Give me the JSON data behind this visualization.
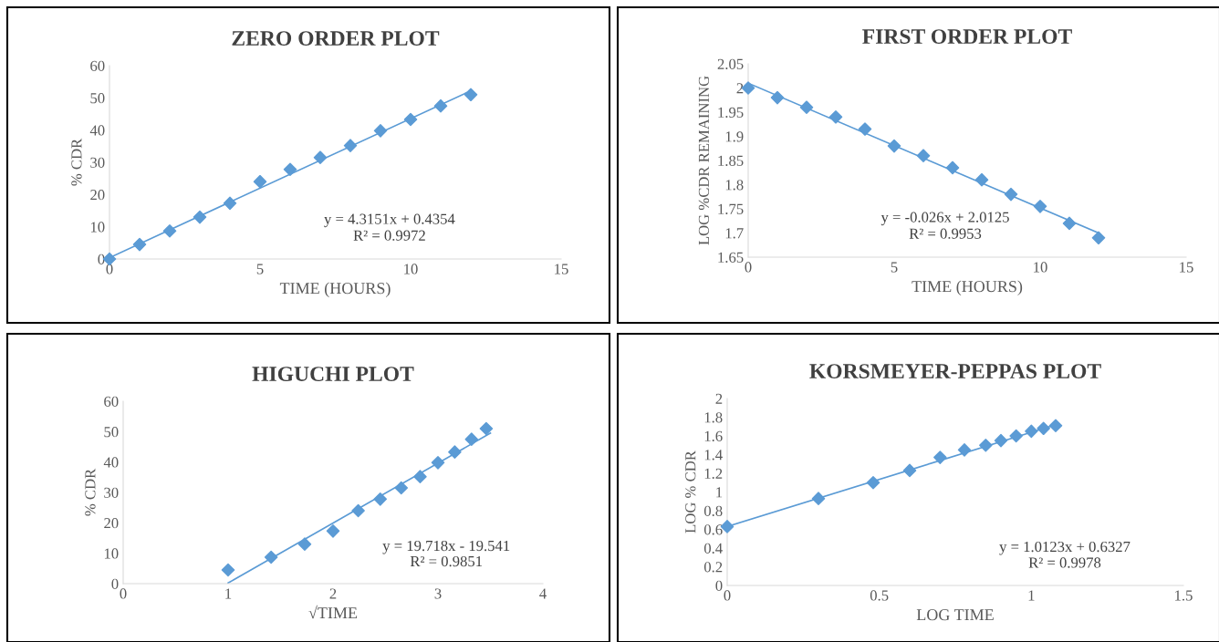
{
  "chart_data": [
    {
      "type": "scatter",
      "title": "ZERO ORDER PLOT",
      "xlabel": "TIME (HOURS)",
      "ylabel": "% CDR",
      "xlim": [
        0,
        15
      ],
      "xticks": [
        0,
        5,
        10,
        15
      ],
      "ylim": [
        0,
        60
      ],
      "yticks": [
        0,
        10,
        20,
        30,
        40,
        50,
        60
      ],
      "grid": false,
      "series": [
        {
          "color": "#5b9bd5",
          "marker": "diamond",
          "x": [
            0,
            1,
            2,
            3,
            4,
            5,
            6,
            7,
            8,
            9,
            10,
            11,
            12
          ],
          "values": [
            0,
            4.5,
            8.7,
            13,
            17.3,
            24,
            27.8,
            31.5,
            35.2,
            39.8,
            43.3,
            47.5,
            51
          ]
        },
        {
          "type": "line",
          "marker": "none",
          "color": "#5b9bd5",
          "x": [
            0,
            12
          ],
          "values": [
            0.4,
            52.2
          ]
        }
      ],
      "annotations": [
        "y = 4.3151x + 0.4354",
        "R² = 0.9972"
      ]
    },
    {
      "type": "scatter",
      "title": "FIRST ORDER PLOT",
      "xlabel": "TIME (HOURS)",
      "ylabel": "LOG %CDR REMAINING",
      "xlim": [
        0,
        15
      ],
      "xticks": [
        0,
        5,
        10,
        15
      ],
      "ylim": [
        1.65,
        2.05
      ],
      "yticks": [
        {
          "value": 1.65,
          "label": "1.65"
        },
        {
          "value": 1.7,
          "label": "1.7"
        },
        {
          "value": 1.75,
          "label": "1.75"
        },
        {
          "value": 1.8,
          "label": "1.8"
        },
        {
          "value": 1.85,
          "label": "1.85"
        },
        {
          "value": 1.9,
          "label": "1.9"
        },
        {
          "value": 1.95,
          "label": "1.95"
        },
        {
          "value": 2,
          "label": "2"
        },
        {
          "value": 2.05,
          "label": "2.05"
        }
      ],
      "grid": false,
      "series": [
        {
          "color": "#5b9bd5",
          "marker": "diamond",
          "x": [
            0,
            1,
            2,
            3,
            4,
            5,
            6,
            7,
            8,
            9,
            10,
            11,
            12
          ],
          "values": [
            2.0,
            1.98,
            1.96,
            1.94,
            1.915,
            1.88,
            1.86,
            1.835,
            1.81,
            1.78,
            1.755,
            1.72,
            1.69
          ]
        },
        {
          "type": "line",
          "marker": "none",
          "color": "#5b9bd5",
          "x": [
            0,
            12
          ],
          "values": [
            2.01,
            1.7
          ]
        }
      ],
      "annotations": [
        "y = -0.026x + 2.0125",
        "R² = 0.9953"
      ]
    },
    {
      "type": "scatter",
      "title": "HIGUCHI PLOT",
      "xlabel": "√TIME",
      "ylabel": "% CDR",
      "xlim": [
        0,
        4
      ],
      "xticks": [
        0,
        1,
        2,
        3,
        4
      ],
      "ylim": [
        0,
        60
      ],
      "yticks": [
        0,
        10,
        20,
        30,
        40,
        50,
        60
      ],
      "grid": false,
      "series": [
        {
          "color": "#5b9bd5",
          "marker": "diamond",
          "x": [
            1,
            1.41,
            1.73,
            2,
            2.24,
            2.45,
            2.65,
            2.83,
            3,
            3.16,
            3.32,
            3.46
          ],
          "values": [
            4.5,
            8.7,
            13,
            17.3,
            24,
            27.8,
            31.5,
            35.2,
            39.8,
            43.3,
            47.5,
            51
          ]
        },
        {
          "type": "line",
          "marker": "none",
          "color": "#5b9bd5",
          "x": [
            1,
            3.5
          ],
          "values": [
            0.2,
            49.5
          ]
        }
      ],
      "annotations": [
        "y = 19.718x - 19.541",
        "R² = 0.9851"
      ]
    },
    {
      "type": "scatter",
      "title": "KORSMEYER-PEPPAS PLOT",
      "xlabel": "LOG TIME",
      "ylabel": "LOG % CDR",
      "xlim": [
        0,
        1.5
      ],
      "xticks": [
        0,
        0.5,
        1,
        1.5
      ],
      "ylim": [
        0,
        2
      ],
      "yticks": [
        0,
        0.2,
        0.4,
        0.6,
        0.8,
        1,
        1.2,
        1.4,
        1.6,
        1.8,
        2
      ],
      "grid": false,
      "series": [
        {
          "color": "#5b9bd5",
          "marker": "diamond",
          "x": [
            0,
            0.3,
            0.48,
            0.6,
            0.7,
            0.78,
            0.85,
            0.9,
            0.95,
            1.0,
            1.04,
            1.08
          ],
          "values": [
            0.63,
            0.93,
            1.1,
            1.23,
            1.37,
            1.45,
            1.5,
            1.55,
            1.6,
            1.65,
            1.68,
            1.71
          ]
        },
        {
          "type": "line",
          "marker": "none",
          "color": "#5b9bd5",
          "x": [
            0,
            1.08
          ],
          "values": [
            0.63,
            1.72
          ]
        }
      ],
      "annotations": [
        "y = 1.0123x + 0.6327",
        "R² = 0.9978"
      ]
    }
  ]
}
